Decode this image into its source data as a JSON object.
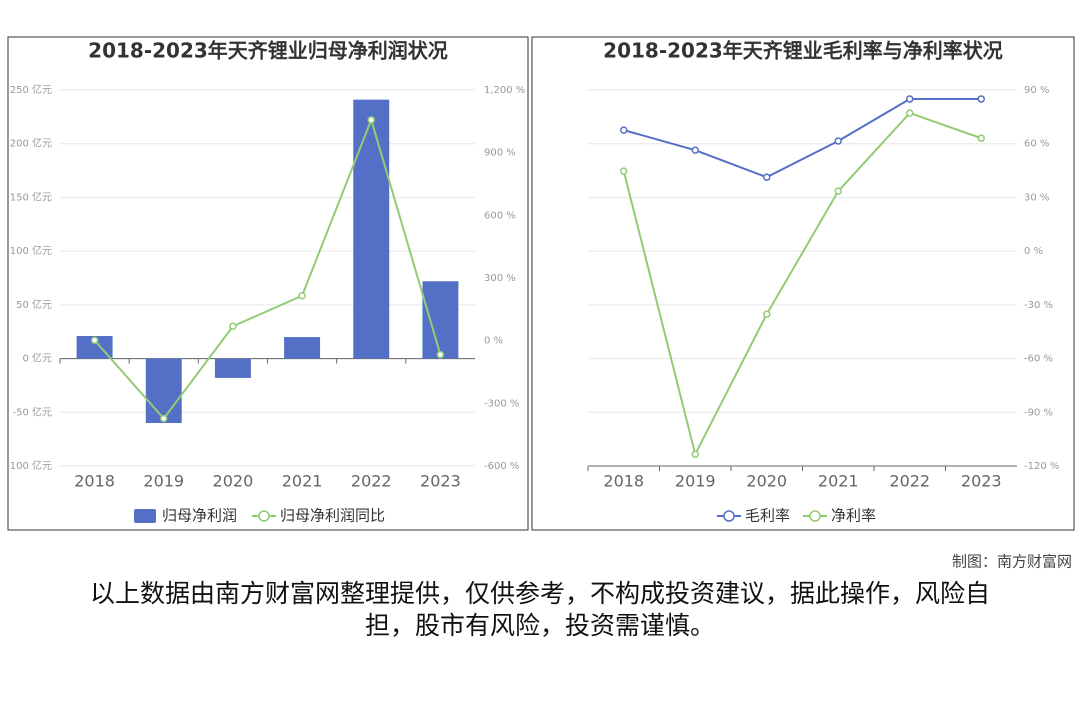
{
  "chart_data": [
    {
      "type": "bar",
      "title": "2018-2023年天齐锂业归母净利润状况",
      "categories": [
        "2018",
        "2019",
        "2020",
        "2021",
        "2022",
        "2023"
      ],
      "series": [
        {
          "name": "归母净利润",
          "type": "bar",
          "color": "#5470c6",
          "values": [
            21,
            -60,
            -18,
            20,
            241,
            72
          ]
        },
        {
          "name": "归母净利润同比",
          "type": "line",
          "axis": "y2",
          "color": "#91cc75",
          "values": [
            2,
            -373,
            69,
            215,
            1057,
            -67
          ]
        }
      ],
      "ylim": [
        -100,
        250
      ],
      "yticks": [
        {
          "value": -100,
          "label": "-100 亿元"
        },
        {
          "value": -50,
          "label": "-50 亿元"
        },
        {
          "value": 0,
          "label": "0 亿元"
        },
        {
          "value": 50,
          "label": "50 亿元"
        },
        {
          "value": 100,
          "label": "100 亿元"
        },
        {
          "value": 150,
          "label": "150 亿元"
        },
        {
          "value": 200,
          "label": "200 亿元"
        },
        {
          "value": 250,
          "label": "250 亿元"
        }
      ],
      "y2lim": [
        -600,
        1200
      ],
      "y2ticks": [
        {
          "value": -600,
          "label": "-600 %"
        },
        {
          "value": -300,
          "label": "-300 %"
        },
        {
          "value": 0,
          "label": "0 %"
        },
        {
          "value": 300,
          "label": "300 %"
        },
        {
          "value": 600,
          "label": "600 %"
        },
        {
          "value": 900,
          "label": "900 %"
        },
        {
          "value": 1200,
          "label": "1,200 %"
        }
      ],
      "grid": true
    },
    {
      "type": "line",
      "title": "2018-2023年天齐锂业毛利率与净利率状况",
      "categories": [
        "2018",
        "2019",
        "2020",
        "2021",
        "2022",
        "2023"
      ],
      "series": [
        {
          "name": "毛利率",
          "color": "#5470c6",
          "values": [
            67.6,
            56.4,
            41.3,
            61.5,
            85,
            85
          ]
        },
        {
          "name": "净利率",
          "color": "#91cc75",
          "values": [
            44.7,
            -113.4,
            -35.2,
            33.5,
            77.1,
            63.1
          ]
        }
      ],
      "ylim": [
        -120,
        90
      ],
      "yticks": [
        {
          "value": -120,
          "label": "-120 %"
        },
        {
          "value": -90,
          "label": "-90 %"
        },
        {
          "value": -60,
          "label": "-60 %"
        },
        {
          "value": -30,
          "label": "-30 %"
        },
        {
          "value": 0,
          "label": "0 %"
        },
        {
          "value": 30,
          "label": "30 %"
        },
        {
          "value": 60,
          "label": "60 %"
        },
        {
          "value": 90,
          "label": "90 %"
        }
      ],
      "grid": true
    }
  ],
  "source": "制图：南方财富网",
  "disclaimer": "以上数据由南方财富网整理提供，仅供参考，不构成投资建议，据此操作，风险自担，股市有风险，投资需谨慎。"
}
